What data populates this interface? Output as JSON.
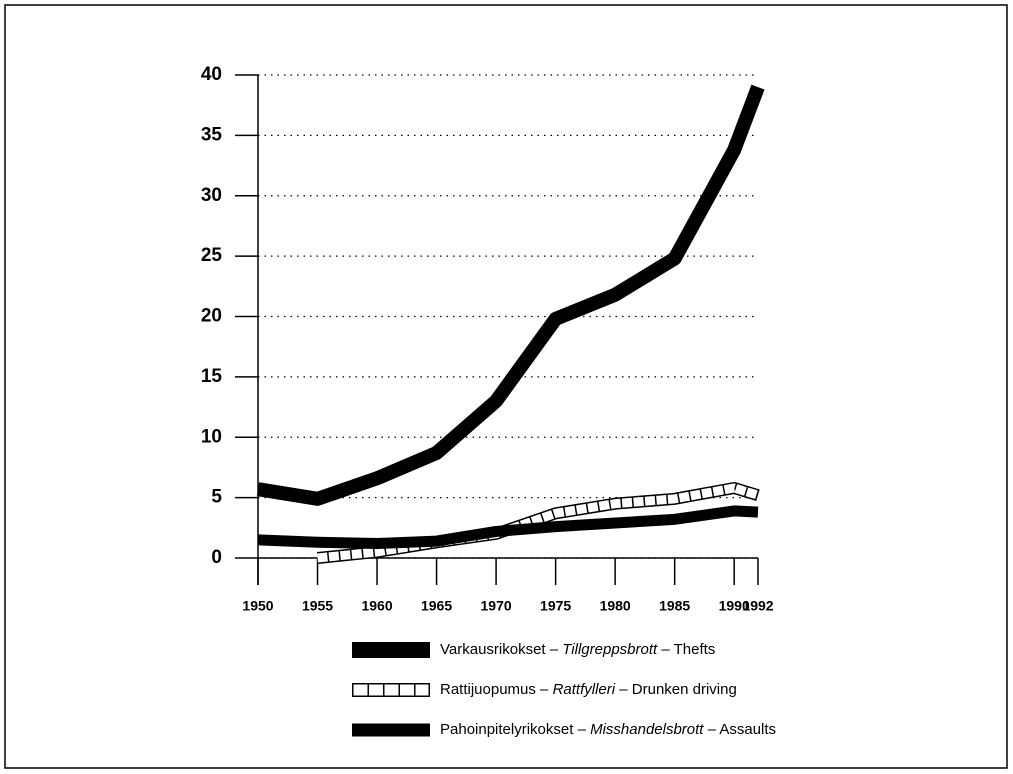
{
  "chart_data": {
    "type": "line",
    "x": [
      1950,
      1955,
      1960,
      1965,
      1970,
      1975,
      1980,
      1985,
      1990,
      1992
    ],
    "xlim": [
      1950,
      1992
    ],
    "xticks": [
      1950,
      1955,
      1960,
      1965,
      1970,
      1975,
      1980,
      1985,
      1990,
      1992
    ],
    "ylim": [
      0,
      40
    ],
    "yticks": [
      0,
      5,
      10,
      15,
      20,
      25,
      30,
      35,
      40
    ],
    "grid": true,
    "series": [
      {
        "name": "Varkausrikokset – Tillgreppsbrott – Thefts",
        "color": "#000000",
        "style": "solid",
        "values": [
          5.7,
          4.9,
          6.6,
          8.7,
          13,
          19.8,
          21.8,
          24.8,
          33.8,
          39
        ]
      },
      {
        "name": "Rattijuopumus  – Rattfylleri – Drunken driving",
        "color": "#000000",
        "style": "hollow",
        "values": [
          null,
          0,
          0.5,
          1.3,
          2.0,
          3.7,
          4.5,
          4.9,
          5.8,
          5.2
        ]
      },
      {
        "name": "Pahoinpitelyrikokset – Misshandelsbrott – Assaults",
        "color": "#000000",
        "style": "solid",
        "values": [
          1.5,
          1.3,
          1.2,
          1.4,
          2.2,
          2.6,
          2.9,
          3.2,
          3.9,
          3.8
        ]
      }
    ]
  }
}
